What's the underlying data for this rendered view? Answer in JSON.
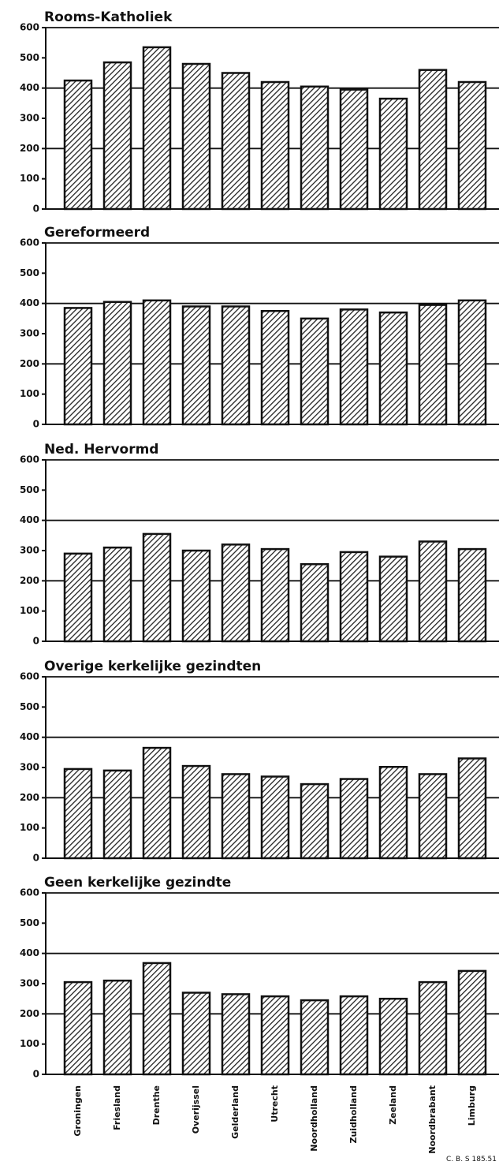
{
  "chart_data": [
    {
      "type": "bar",
      "title": "Rooms-Katholiek",
      "values": [
        425,
        485,
        535,
        480,
        450,
        420,
        405,
        395,
        365,
        460,
        420
      ],
      "ylim": [
        0,
        600
      ],
      "yticks": [
        0,
        100,
        200,
        300,
        400,
        500,
        600
      ],
      "hlines": [
        200,
        400
      ]
    },
    {
      "type": "bar",
      "title": "Gereformeerd",
      "values": [
        385,
        405,
        410,
        390,
        390,
        375,
        350,
        380,
        370,
        395,
        410
      ],
      "ylim": [
        0,
        600
      ],
      "yticks": [
        0,
        100,
        200,
        300,
        400,
        500,
        600
      ],
      "hlines": [
        200,
        400
      ]
    },
    {
      "type": "bar",
      "title": "Ned. Hervormd",
      "values": [
        290,
        310,
        355,
        300,
        320,
        305,
        255,
        295,
        280,
        330,
        305
      ],
      "ylim": [
        0,
        600
      ],
      "yticks": [
        0,
        100,
        200,
        300,
        400,
        500,
        600
      ],
      "hlines": [
        200,
        400
      ]
    },
    {
      "type": "bar",
      "title": "Overige kerkelijke gezindten",
      "values": [
        295,
        290,
        365,
        305,
        278,
        270,
        245,
        262,
        302,
        278,
        330
      ],
      "ylim": [
        0,
        600
      ],
      "yticks": [
        0,
        100,
        200,
        300,
        400,
        500,
        600
      ],
      "hlines": [
        200,
        400
      ]
    },
    {
      "type": "bar",
      "title": "Geen kerkelijke gezindte",
      "values": [
        305,
        310,
        368,
        270,
        265,
        258,
        245,
        258,
        250,
        305,
        342
      ],
      "ylim": [
        0,
        600
      ],
      "yticks": [
        0,
        100,
        200,
        300,
        400,
        500,
        600
      ],
      "hlines": [
        200,
        400
      ],
      "categories": [
        "Groningen",
        "Friesland",
        "Drenthe",
        "Overijssel",
        "Gelderland",
        "Utrecht",
        "Noordholland",
        "Zuidholland",
        "Zeeland",
        "Noordbrabant",
        "Limburg"
      ],
      "source": "C. B. S 185.51"
    }
  ]
}
